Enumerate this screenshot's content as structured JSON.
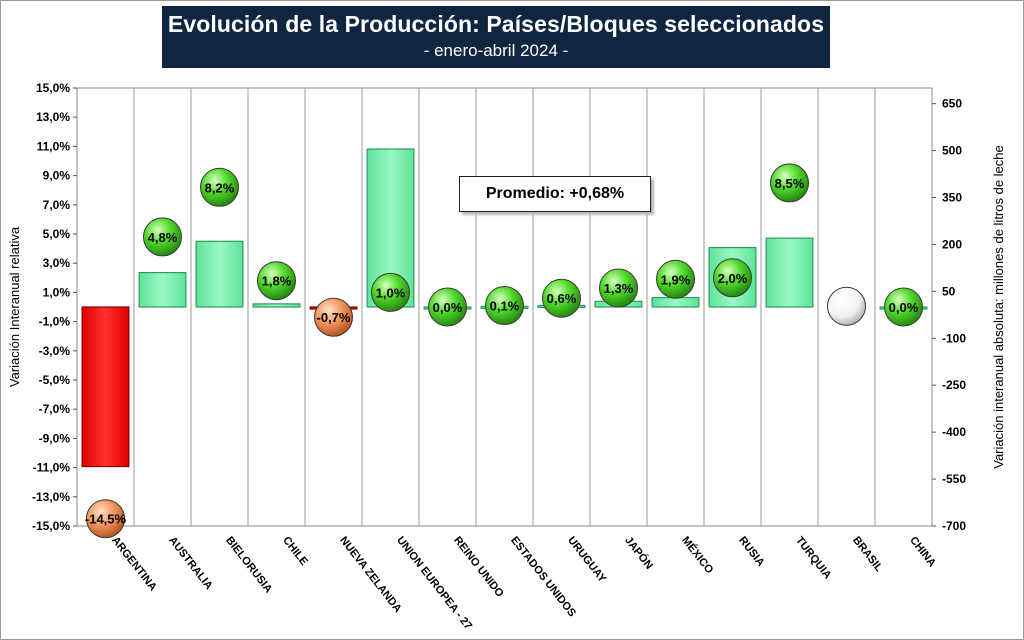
{
  "title": "Evolución de la Producción: Países/Bloques seleccionados",
  "subtitle": "- enero-abril 2024 -",
  "average_label": "Promedio: +0,68%",
  "colors": {
    "title_bg": "#0f2540",
    "bar_positive": "#7ff2b2",
    "bar_negative": "#ff1a1a",
    "ball_positive": "#3ccc1c",
    "ball_negative": "#f08850",
    "ball_neutral": "#ffffff"
  },
  "chart_data": {
    "type": "bar",
    "categories": [
      "ARGENTINA",
      "AUSTRALIA",
      "BIELORUSIA",
      "CHILE",
      "NUEVA ZELANDA",
      "UNION EUROPEA - 27",
      "REINO UNIDO",
      "ESTADOS UNIDOS",
      "URUGUAY",
      "JAPÓN",
      "MÉXICO",
      "RUSIA",
      "TURQUIA",
      "BRASIL",
      "CHINA"
    ],
    "series": [
      {
        "axis": "right",
        "kind": "bar",
        "values": [
          -510,
          110,
          210,
          10,
          -5,
          505,
          0,
          2,
          5,
          18,
          30,
          190,
          220,
          null,
          0
        ]
      },
      {
        "axis": "left",
        "kind": "marker",
        "values": [
          -14.5,
          4.8,
          8.2,
          1.8,
          -0.7,
          1.0,
          0.0,
          0.1,
          0.6,
          1.3,
          1.9,
          2.0,
          8.5,
          null,
          0.0
        ],
        "labels": [
          "-14,5%",
          "4,8%",
          "8,2%",
          "1,8%",
          "-0,7%",
          "1,0%",
          "0,0%",
          "0,1%",
          "0,6%",
          "1,3%",
          "1,9%",
          "2,0%",
          "8,5%",
          "",
          "0,0%"
        ]
      }
    ],
    "ylabel": "Variación Interanual relativa",
    "y2label": "Variación interanual absoluta: millones de litros de leche",
    "ylim": [
      -15,
      15
    ],
    "y2lim": [
      -700,
      700
    ],
    "yticks": [
      "15,0%",
      "13,0%",
      "11,0%",
      "9,0%",
      "7,0%",
      "5,0%",
      "3,0%",
      "1,0%",
      "-1,0%",
      "-3,0%",
      "-5,0%",
      "-7,0%",
      "-9,0%",
      "-11,0%",
      "-13,0%",
      "-15,0%"
    ],
    "y2ticks": [
      "650",
      "500",
      "350",
      "200",
      "50",
      "-100",
      "-250",
      "-400",
      "-550",
      "-700"
    ]
  }
}
